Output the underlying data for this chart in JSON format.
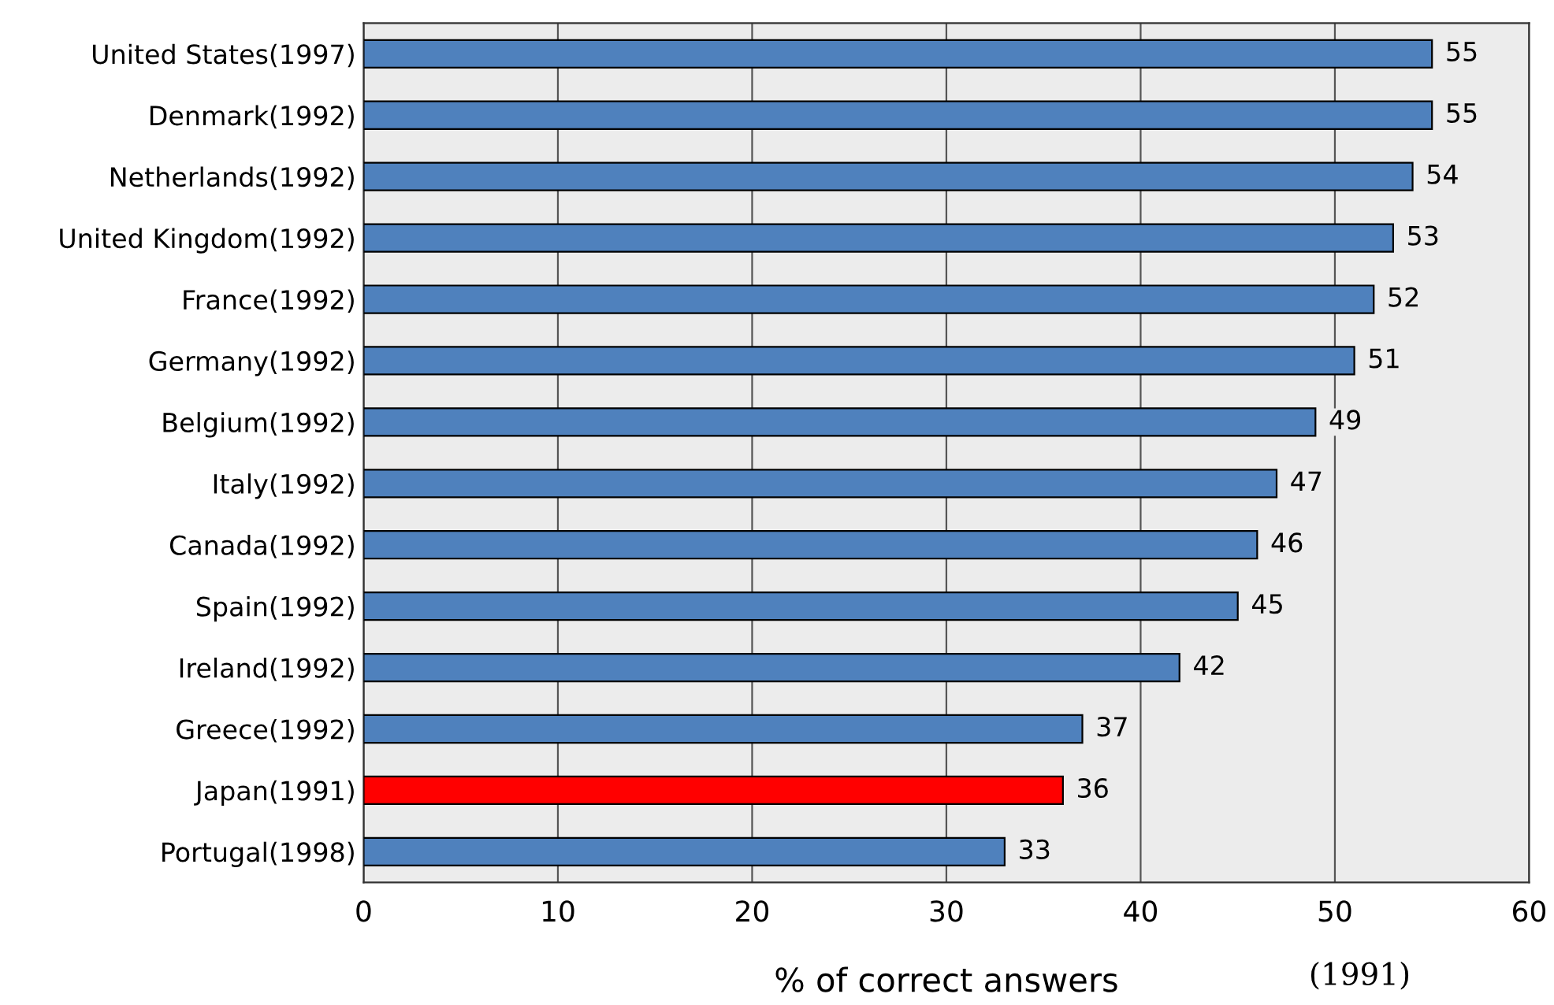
{
  "chart_data": {
    "type": "bar",
    "orientation": "horizontal",
    "categories": [
      "United States(1997)",
      "Denmark(1992)",
      "Netherlands(1992)",
      "United Kingdom(1992)",
      "France(1992)",
      "Germany(1992)",
      "Belgium(1992)",
      "Italy(1992)",
      "Canada(1992)",
      "Spain(1992)",
      "Ireland(1992)",
      "Greece(1992)",
      "Japan(1991)",
      "Portugal(1998)"
    ],
    "values": [
      55,
      55,
      54,
      53,
      52,
      51,
      49,
      47,
      46,
      45,
      42,
      37,
      36,
      33
    ],
    "colors": [
      "#4f81bd",
      "#4f81bd",
      "#4f81bd",
      "#4f81bd",
      "#4f81bd",
      "#4f81bd",
      "#4f81bd",
      "#4f81bd",
      "#4f81bd",
      "#4f81bd",
      "#4f81bd",
      "#4f81bd",
      "#ff0000",
      "#4f81bd"
    ],
    "xlim": [
      0,
      60
    ],
    "xticks": [
      0,
      10,
      20,
      30,
      40,
      50,
      60
    ],
    "xlabel": "% of correct answers",
    "annotations": [
      "(1991)"
    ],
    "data_labels": true,
    "grid": "x"
  }
}
